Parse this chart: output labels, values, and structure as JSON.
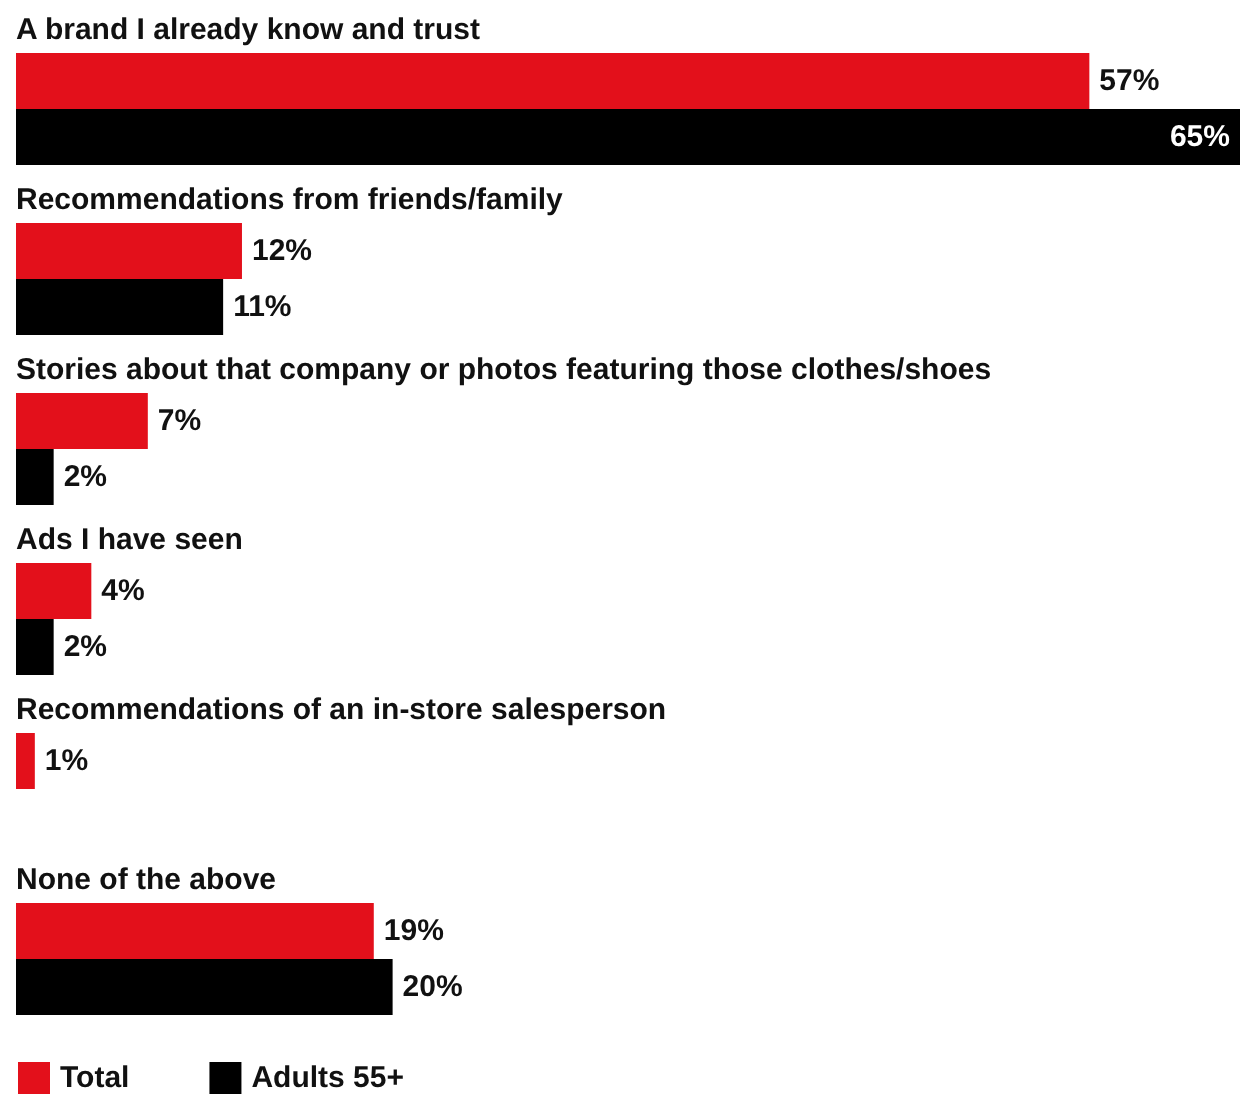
{
  "chart_data": {
    "type": "bar",
    "orientation": "horizontal",
    "tick_labels": false,
    "categories": [
      "A brand I already know and trust",
      "Recommendations from friends/family",
      "Stories about that company or photos featuring those clothes/shoes",
      "Ads I have seen",
      "Recommendations of an in-store salesperson",
      "None of the above"
    ],
    "series": [
      {
        "name": "Total",
        "color": "#e3101b",
        "values": [
          57,
          12,
          7,
          4,
          1,
          19
        ],
        "value_labels": [
          "57%",
          "12%",
          "7%",
          "4%",
          "1%",
          "19%"
        ]
      },
      {
        "name": "Adults 55+",
        "color": "#000000",
        "values": [
          65,
          11,
          2,
          2,
          null,
          20
        ],
        "value_labels": [
          "65%",
          "11%",
          "2%",
          "2%",
          null,
          "20%"
        ]
      }
    ],
    "legend": "bottom left"
  }
}
